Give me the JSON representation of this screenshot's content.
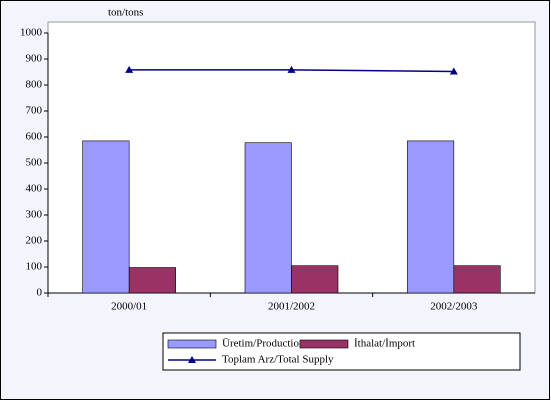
{
  "chart_data": {
    "type": "bar",
    "unit_label": "ton/tons",
    "categories": [
      "2000/01",
      "2001/2002",
      "2002/2003"
    ],
    "series": [
      {
        "name": "Üretim/Production",
        "color": "#9999ff",
        "values": [
          585,
          578,
          585
        ]
      },
      {
        "name": "İthalat/İmport",
        "color": "#993366",
        "values": [
          98,
          105,
          105
        ]
      },
      {
        "name": "Toplam Arz/Total Supply",
        "color": "#000080",
        "type": "line",
        "values": [
          858,
          858,
          852
        ]
      }
    ],
    "ylim": [
      0,
      1000
    ],
    "yticks": [
      0,
      100,
      200,
      300,
      400,
      500,
      600,
      700,
      800,
      900,
      1000
    ]
  }
}
